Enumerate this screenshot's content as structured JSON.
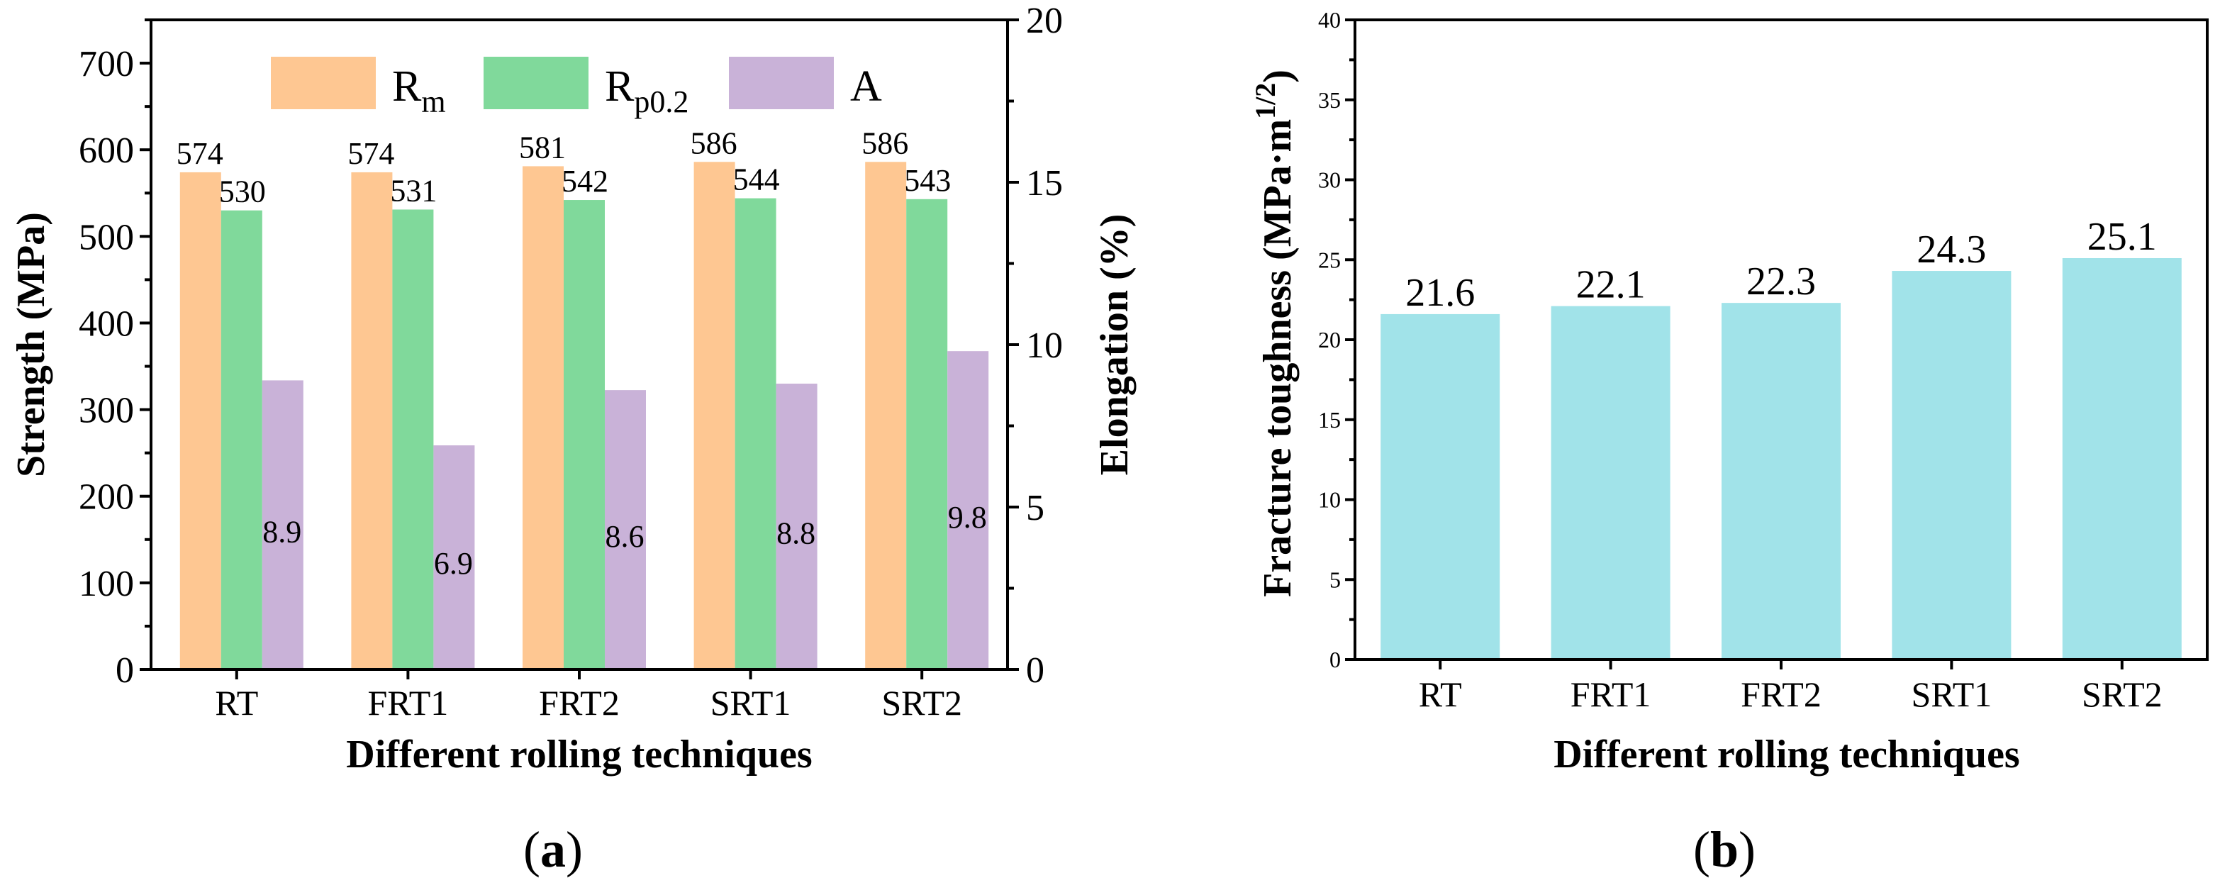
{
  "colors": {
    "Rm": "#FEC792",
    "Rp02": "#80D99B",
    "A": "#C9B2D8",
    "toughness": "#A1E3E9"
  },
  "panel_a": {
    "label_prefix": "(",
    "label_letter": "a",
    "label_suffix": ")",
    "legend": [
      {
        "key": "Rm",
        "main": "R",
        "sub": "m"
      },
      {
        "key": "Rp02",
        "main": "R",
        "sub": "p0.2"
      },
      {
        "key": "A",
        "main": "A",
        "sub": ""
      }
    ]
  },
  "panel_b": {
    "label_prefix": "(",
    "label_letter": "b",
    "label_suffix": ")"
  },
  "chart_data": [
    {
      "type": "bar",
      "categories": [
        "RT",
        "FRT1",
        "FRT2",
        "SRT1",
        "SRT2"
      ],
      "series": [
        {
          "name": "Rm",
          "axis": "left",
          "values": [
            574,
            574,
            581,
            586,
            586
          ],
          "labels": [
            "574",
            "574",
            "581",
            "586",
            "586"
          ]
        },
        {
          "name": "Rp0.2",
          "axis": "left",
          "values": [
            530,
            531,
            542,
            544,
            543
          ],
          "labels": [
            "530",
            "531",
            "542",
            "544",
            "543"
          ]
        },
        {
          "name": "A",
          "axis": "right",
          "values": [
            8.9,
            6.9,
            8.6,
            8.8,
            9.8
          ],
          "labels": [
            "8.9",
            "6.9",
            "8.6",
            "8.8",
            "9.8"
          ]
        }
      ],
      "xlabel": "Different rolling techniques",
      "ylabel": "Strength (MPa)",
      "ylim": [
        0,
        750
      ],
      "yticks": [
        "0",
        "100",
        "200",
        "300",
        "400",
        "500",
        "600",
        "700"
      ],
      "y2label": "Elongation (%)",
      "y2lim": [
        0,
        20
      ],
      "y2ticks": [
        "0",
        "5",
        "10",
        "15",
        "20"
      ],
      "legend_position": "top"
    },
    {
      "type": "bar",
      "categories": [
        "RT",
        "FRT1",
        "FRT2",
        "SRT1",
        "SRT2"
      ],
      "series": [
        {
          "name": "",
          "values": [
            21.6,
            22.1,
            22.3,
            24.3,
            25.1
          ],
          "labels": [
            "21.6",
            "22.1",
            "22.3",
            "24.3",
            "25.1"
          ]
        }
      ],
      "xlabel": "Different rolling techniques",
      "ylabel": "Fracture toughness (MPa·m",
      "ylabel_sup": "1/2",
      "ylabel_close": ")",
      "ylim": [
        0,
        40
      ],
      "yticks": [
        "0",
        "5",
        "10",
        "15",
        "20",
        "25",
        "30",
        "35",
        "40"
      ]
    }
  ]
}
